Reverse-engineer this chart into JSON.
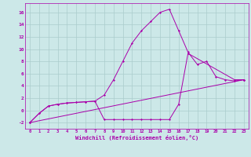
{
  "xlabel": "Windchill (Refroidissement éolien,°C)",
  "background_color": "#cce8e8",
  "grid_color": "#aacccc",
  "line_color": "#aa00aa",
  "xlim": [
    -0.5,
    23.5
  ],
  "ylim": [
    -3.0,
    17.5
  ],
  "xticks": [
    0,
    1,
    2,
    3,
    4,
    5,
    6,
    7,
    8,
    9,
    10,
    11,
    12,
    13,
    14,
    15,
    16,
    17,
    18,
    19,
    20,
    21,
    22,
    23
  ],
  "yticks": [
    -2,
    0,
    2,
    4,
    6,
    8,
    10,
    12,
    14,
    16
  ],
  "line1_x": [
    0,
    1,
    2,
    3,
    4,
    5,
    6,
    7,
    8,
    9,
    10,
    11,
    12,
    13,
    14,
    15,
    16,
    17,
    22,
    23
  ],
  "line1_y": [
    -2.0,
    -0.5,
    0.7,
    1.0,
    1.2,
    1.3,
    1.4,
    1.5,
    -1.5,
    -1.5,
    -1.5,
    -1.5,
    -1.5,
    -1.5,
    -1.5,
    -1.5,
    1.0,
    9.3,
    5.0,
    5.0
  ],
  "line2_x": [
    0,
    1,
    2,
    3,
    4,
    5,
    6,
    7,
    8,
    9,
    10,
    11,
    12,
    13,
    14,
    15,
    16,
    17,
    18,
    19,
    20,
    21,
    22,
    23
  ],
  "line2_y": [
    -2.0,
    -0.5,
    0.7,
    1.0,
    1.2,
    1.3,
    1.4,
    1.5,
    2.5,
    5.0,
    8.0,
    11.0,
    13.0,
    14.5,
    16.0,
    16.5,
    13.0,
    9.5,
    7.5,
    8.0,
    5.5,
    5.0,
    4.8,
    5.0
  ],
  "line3_x": [
    0,
    23
  ],
  "line3_y": [
    -2.0,
    5.0
  ]
}
